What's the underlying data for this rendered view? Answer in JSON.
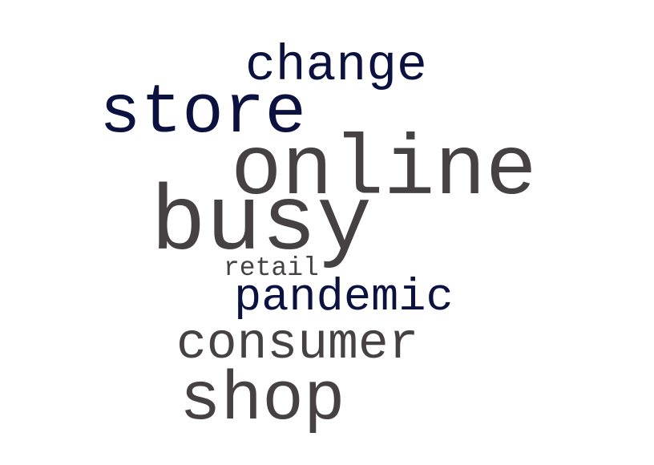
{
  "word_cloud": {
    "words": {
      "change": {
        "text": "change",
        "color": "#0c1240"
      },
      "store": {
        "text": "store",
        "color": "#0c1240"
      },
      "online": {
        "text": "online",
        "color": "#464244"
      },
      "busy": {
        "text": "busy",
        "color": "#464244"
      },
      "retail": {
        "text": "retail",
        "color": "#464244"
      },
      "pandemic": {
        "text": "pandemic",
        "color": "#0c1240"
      },
      "consumer": {
        "text": "consumer",
        "color": "#464244"
      },
      "shop": {
        "text": "shop",
        "color": "#464244"
      }
    }
  }
}
